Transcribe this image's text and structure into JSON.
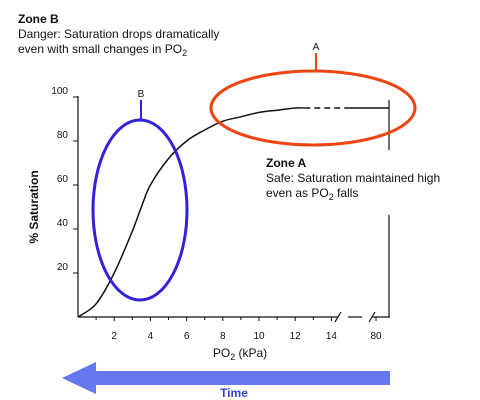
{
  "zone_b": {
    "title": "Zone B",
    "line1": "Danger: Saturation drops dramatically",
    "line2_prefix": "even with small changes in PO",
    "line2_sub": "2",
    "marker": "B"
  },
  "zone_a": {
    "title": "Zone A",
    "line1": "Safe: Saturation maintained high",
    "line2_prefix": "even as PO",
    "line2_sub": "2",
    "line2_suffix": " falls",
    "marker": "A"
  },
  "time_label": "Time",
  "colors": {
    "zone_a_ellipse": "#ee4411",
    "zone_b_ellipse": "#3322dd",
    "time_arrow": "#6677ee",
    "time_text": "#3344cc",
    "curve": "#111111"
  },
  "chart_data": {
    "type": "line",
    "ylabel": "% Saturation",
    "xlabel_prefix": "PO",
    "xlabel_sub": "2",
    "xlabel_suffix": " (kPa)",
    "y_ticks": [
      "20",
      "40",
      "60",
      "80",
      "100"
    ],
    "x_ticks": [
      "2",
      "4",
      "6",
      "8",
      "10",
      "12",
      "14",
      "80"
    ],
    "x_axis_break_between": [
      "14",
      "80"
    ],
    "xlim": [
      0,
      80
    ],
    "ylim": [
      0,
      100
    ],
    "grid": false,
    "series": [
      {
        "x": [
          0,
          1,
          2,
          3,
          3.5,
          4,
          5,
          6,
          7,
          8,
          9,
          10,
          11,
          12,
          13,
          14,
          80
        ],
        "y": [
          0,
          6,
          20,
          39,
          50,
          60,
          72,
          80,
          85,
          89,
          91,
          93,
          94,
          95,
          95,
          95,
          95
        ]
      }
    ],
    "dashed_segment_x": [
      12.5,
      14
    ]
  }
}
